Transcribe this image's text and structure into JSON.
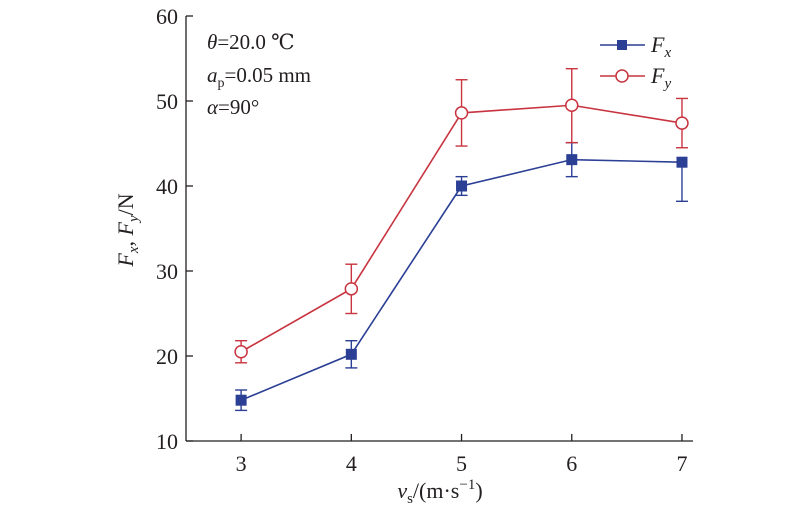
{
  "chart_data": {
    "type": "line",
    "x": [
      3,
      4,
      5,
      6,
      7
    ],
    "xlim": [
      2.5,
      7.1
    ],
    "ylim": [
      10,
      60
    ],
    "xticks": [
      "3",
      "4",
      "5",
      "6",
      "7"
    ],
    "yticks": [
      "10",
      "20",
      "30",
      "40",
      "50",
      "60"
    ],
    "xlabel": "v_s/(m·s⁻¹)",
    "ylabel": "F_x, F_y/N",
    "grid": false,
    "legend_position": "top-right",
    "annotations": [
      "θ=20.0 ℃",
      "a_p=0.05 mm",
      "α=90°"
    ],
    "series": [
      {
        "name": "F_x",
        "color": "#2b3f95",
        "marker": "filled-square",
        "values": [
          14.8,
          20.2,
          40.0,
          43.1,
          42.8
        ],
        "err_low": [
          1.2,
          1.6,
          1.1,
          2.0,
          4.6
        ],
        "err_high": [
          1.2,
          1.6,
          1.1,
          2.0,
          0.0
        ]
      },
      {
        "name": "F_y",
        "color": "#c8343f",
        "marker": "open-circle",
        "values": [
          20.5,
          27.9,
          48.6,
          49.5,
          47.4
        ],
        "err_low": [
          1.3,
          2.9,
          3.9,
          4.4,
          2.9
        ],
        "err_high": [
          1.3,
          2.9,
          3.9,
          4.3,
          2.9
        ]
      }
    ]
  }
}
